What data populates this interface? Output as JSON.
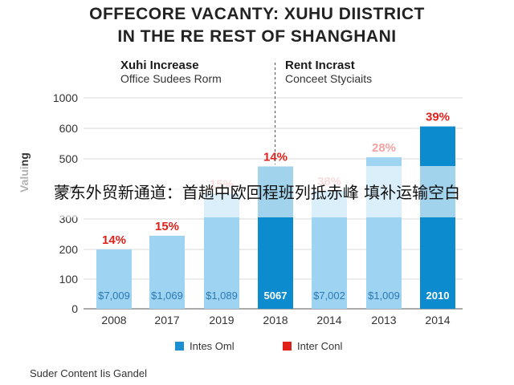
{
  "title_line1": "OFFECORE VACANTY: XUHU DIISTRICT",
  "title_line2": "IN THE RE REST OF SHANGHANI",
  "subheads": {
    "left_bold": "Xuhi Increase",
    "left_normal": "Office Sudees Rorm",
    "right_bold": "Rent Incrast",
    "right_normal": "Conceet Styciaits"
  },
  "overlay_text": "蒙东外贸新通道：首趟中欧回程班列抵赤峰 填补运输空白",
  "legend": {
    "series1": "Intes Oml",
    "series2": "Inter Conl",
    "color1": "#1a8fd1",
    "color2": "#e0201b"
  },
  "source": "Suder Content Iis Gandel",
  "colors": {
    "bar_light": "#9ed4f2",
    "bar_dark": "#0d8bcf",
    "pct": "#e0201b",
    "pct_faded": "#f2a3a3",
    "value_light": "#2a78b5"
  },
  "chart_data": {
    "type": "bar",
    "ylabel": "Valuing",
    "ylim": [
      0,
      1000
    ],
    "yticks": [
      {
        "value": 0,
        "label": "0"
      },
      {
        "value": 100,
        "label": "100"
      },
      {
        "value": 200,
        "label": "200"
      },
      {
        "value": 300,
        "label": "300"
      },
      {
        "value": 400,
        "label": "400"
      },
      {
        "value": 500,
        "label": "500"
      },
      {
        "value": 600,
        "label": "600"
      },
      {
        "value": 1000,
        "label": "1000"
      }
    ],
    "grid": true,
    "categories": [
      "2008",
      "2017",
      "2019",
      "2018",
      "2014",
      "2013",
      "2014"
    ],
    "values": [
      200,
      245,
      385,
      475,
      395,
      505,
      625
    ],
    "highlight": [
      false,
      false,
      false,
      true,
      false,
      false,
      true
    ],
    "value_labels": [
      "$7,009",
      "$1,069",
      "$1,089",
      "5067",
      "$7,002",
      "$1,009",
      "2010"
    ],
    "pct_labels": [
      "14%",
      "15%",
      "15%",
      "14%",
      "38%",
      "28%",
      "39%"
    ],
    "pct_faded": [
      false,
      false,
      true,
      false,
      true,
      true,
      false
    ],
    "divider_after_index": 3
  }
}
